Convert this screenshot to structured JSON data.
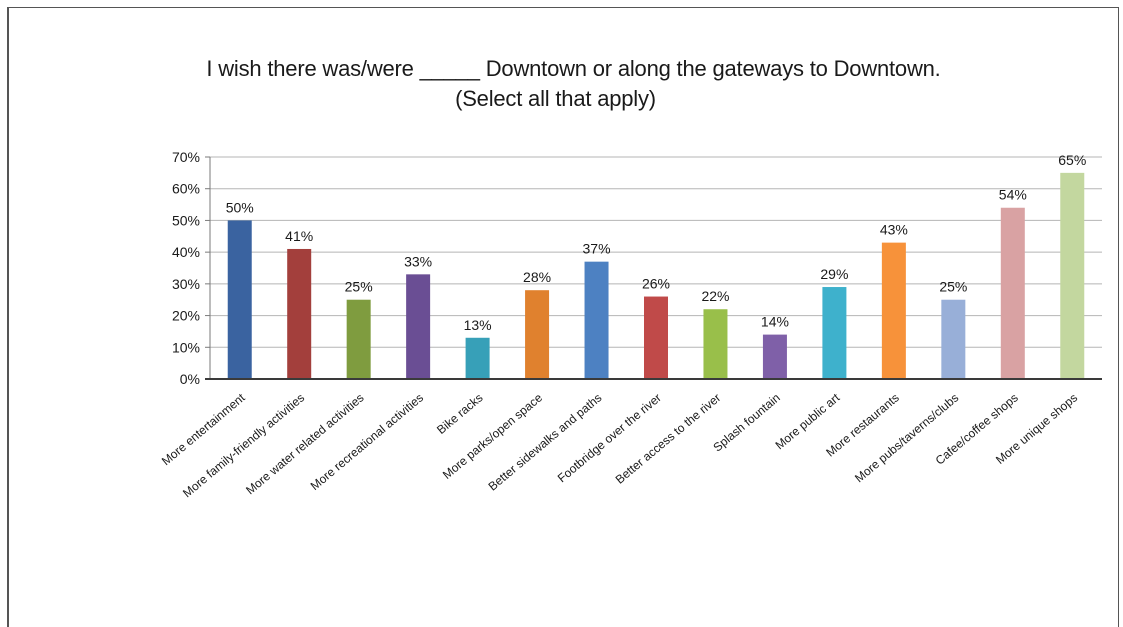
{
  "chart_data": {
    "type": "bar",
    "title": "I wish there was/were _____ Downtown or along the gateways to Downtown.",
    "subtitle": "(Select all that apply)",
    "xlabel": "",
    "ylabel": "",
    "ylim": [
      0,
      70
    ],
    "y_ticks": [
      "0%",
      "10%",
      "20%",
      "30%",
      "40%",
      "50%",
      "60%",
      "70%"
    ],
    "grid": true,
    "categories": [
      "More entertainment",
      "More family-friendly activities",
      "More water related activities",
      "More recreational activities",
      "Bike racks",
      "More parks/open space",
      "Better sidewalks and paths",
      "Footbridge over the river",
      "Better access to the river",
      "Splash fountain",
      "More public art",
      "More restaurants",
      "More pubs/taverns/clubs",
      "Cafee/coffee shops",
      "More unique shops"
    ],
    "values": [
      50,
      41,
      25,
      33,
      13,
      28,
      37,
      26,
      22,
      14,
      29,
      43,
      25,
      54,
      65
    ],
    "data_labels": [
      "50%",
      "41%",
      "25%",
      "33%",
      "13%",
      "28%",
      "37%",
      "26%",
      "22%",
      "14%",
      "29%",
      "43%",
      "25%",
      "54%",
      "65%"
    ],
    "colors": [
      "#3a63a0",
      "#a33f3c",
      "#7f9c3f",
      "#6a4e94",
      "#37a0b8",
      "#e0812e",
      "#4d81c2",
      "#c04a49",
      "#99bf4a",
      "#7f60a8",
      "#3eb1cc",
      "#f7923a",
      "#98afd8",
      "#d9a2a3",
      "#c3d79f"
    ]
  }
}
